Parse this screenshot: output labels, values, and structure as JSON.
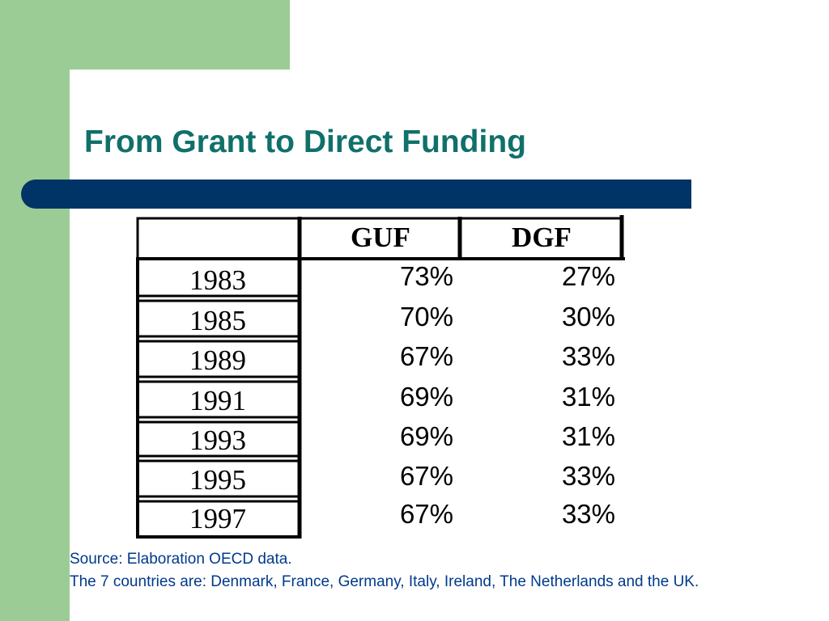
{
  "slide": {
    "title": "From Grant to Direct Funding"
  },
  "table": {
    "corner": "",
    "headers": [
      "GUF",
      "DGF"
    ],
    "rows": [
      {
        "year": "1983",
        "guf": "73%",
        "dgf": "27%"
      },
      {
        "year": "1985",
        "guf": "70%",
        "dgf": "30%"
      },
      {
        "year": "1989",
        "guf": "67%",
        "dgf": "33%"
      },
      {
        "year": "1991",
        "guf": "69%",
        "dgf": "31%"
      },
      {
        "year": "1993",
        "guf": "69%",
        "dgf": "31%"
      },
      {
        "year": "1995",
        "guf": "67%",
        "dgf": "33%"
      },
      {
        "year": "1997",
        "guf": "67%",
        "dgf": "33%"
      }
    ]
  },
  "footer": {
    "source_line": "Source: Elaboration OECD data.",
    "countries_line": "The 7 countries are: Denmark, France, Germany, Italy, Ireland, The Netherlands and the UK."
  },
  "colors": {
    "green_background": "#9ccc96",
    "accent_bar": "#003466",
    "title_teal": "#10706a",
    "footer_blue": "#003a8c"
  }
}
